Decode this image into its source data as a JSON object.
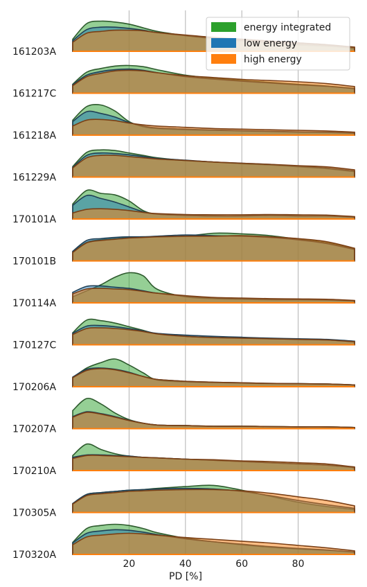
{
  "chart_data": {
    "type": "ridgeline",
    "xlabel": "PD [%]",
    "xlim": [
      0,
      100
    ],
    "xticks": [
      20,
      40,
      60,
      80
    ],
    "grid": "vertical",
    "legend_position": "top-right",
    "series": [
      {
        "name": "energy integrated",
        "color": "#2ca02c"
      },
      {
        "name": "low energy",
        "color": "#1f77b4"
      },
      {
        "name": "high energy",
        "color": "#ff7f0e"
      }
    ],
    "x": [
      0,
      5,
      10,
      15,
      20,
      25,
      30,
      40,
      50,
      60,
      70,
      80,
      90,
      100
    ],
    "rows": [
      {
        "label": "161203A",
        "energy_integrated": [
          0.4,
          0.92,
          1.0,
          0.97,
          0.9,
          0.78,
          0.66,
          0.52,
          0.42,
          0.34,
          0.27,
          0.21,
          0.17,
          0.1
        ],
        "low_energy": [
          0.35,
          0.72,
          0.8,
          0.8,
          0.76,
          0.7,
          0.62,
          0.52,
          0.44,
          0.37,
          0.3,
          0.24,
          0.19,
          0.12
        ],
        "high_energy": [
          0.3,
          0.6,
          0.66,
          0.7,
          0.7,
          0.68,
          0.62,
          0.54,
          0.46,
          0.4,
          0.34,
          0.28,
          0.22,
          0.14
        ]
      },
      {
        "label": "161217C",
        "energy_integrated": [
          0.3,
          0.7,
          0.82,
          0.9,
          0.92,
          0.88,
          0.78,
          0.6,
          0.5,
          0.42,
          0.36,
          0.3,
          0.24,
          0.16
        ],
        "low_energy": [
          0.28,
          0.6,
          0.72,
          0.78,
          0.8,
          0.76,
          0.68,
          0.55,
          0.47,
          0.4,
          0.34,
          0.28,
          0.23,
          0.15
        ],
        "high_energy": [
          0.25,
          0.55,
          0.66,
          0.74,
          0.76,
          0.74,
          0.68,
          0.58,
          0.52,
          0.46,
          0.42,
          0.38,
          0.32,
          0.22
        ]
      },
      {
        "label": "161218A",
        "energy_integrated": [
          0.5,
          0.95,
          1.0,
          0.8,
          0.45,
          0.28,
          0.22,
          0.18,
          0.16,
          0.14,
          0.12,
          0.1,
          0.09,
          0.06
        ],
        "low_energy": [
          0.45,
          0.78,
          0.72,
          0.6,
          0.42,
          0.3,
          0.24,
          0.2,
          0.17,
          0.15,
          0.13,
          0.11,
          0.1,
          0.07
        ],
        "high_energy": [
          0.3,
          0.5,
          0.52,
          0.48,
          0.4,
          0.34,
          0.3,
          0.26,
          0.22,
          0.2,
          0.18,
          0.16,
          0.14,
          0.1
        ]
      },
      {
        "label": "161229A",
        "energy_integrated": [
          0.35,
          0.82,
          0.9,
          0.88,
          0.8,
          0.72,
          0.64,
          0.55,
          0.5,
          0.44,
          0.4,
          0.34,
          0.28,
          0.18
        ],
        "low_energy": [
          0.32,
          0.72,
          0.8,
          0.78,
          0.74,
          0.68,
          0.62,
          0.56,
          0.5,
          0.46,
          0.42,
          0.36,
          0.3,
          0.2
        ],
        "high_energy": [
          0.3,
          0.64,
          0.72,
          0.72,
          0.68,
          0.64,
          0.6,
          0.55,
          0.5,
          0.46,
          0.42,
          0.38,
          0.34,
          0.24
        ]
      },
      {
        "label": "170101A",
        "energy_integrated": [
          0.5,
          0.95,
          0.85,
          0.8,
          0.6,
          0.28,
          0.16,
          0.12,
          0.1,
          0.1,
          0.12,
          0.1,
          0.1,
          0.06
        ],
        "low_energy": [
          0.45,
          0.78,
          0.68,
          0.56,
          0.4,
          0.24,
          0.16,
          0.12,
          0.1,
          0.1,
          0.12,
          0.1,
          0.1,
          0.06
        ],
        "high_energy": [
          0.2,
          0.32,
          0.34,
          0.32,
          0.28,
          0.22,
          0.18,
          0.15,
          0.14,
          0.14,
          0.15,
          0.14,
          0.13,
          0.08
        ]
      },
      {
        "label": "170101B",
        "energy_integrated": [
          0.3,
          0.62,
          0.7,
          0.74,
          0.78,
          0.8,
          0.8,
          0.82,
          0.92,
          0.9,
          0.84,
          0.72,
          0.6,
          0.4
        ],
        "low_energy": [
          0.32,
          0.68,
          0.74,
          0.78,
          0.8,
          0.8,
          0.82,
          0.86,
          0.84,
          0.82,
          0.78,
          0.7,
          0.58,
          0.38
        ],
        "high_energy": [
          0.28,
          0.6,
          0.68,
          0.72,
          0.76,
          0.78,
          0.8,
          0.82,
          0.82,
          0.84,
          0.8,
          0.74,
          0.64,
          0.42
        ]
      },
      {
        "label": "170114A",
        "energy_integrated": [
          0.2,
          0.4,
          0.6,
          0.85,
          1.0,
          0.9,
          0.45,
          0.2,
          0.14,
          0.12,
          0.1,
          0.1,
          0.09,
          0.06
        ],
        "low_energy": [
          0.35,
          0.55,
          0.56,
          0.52,
          0.48,
          0.4,
          0.32,
          0.22,
          0.16,
          0.14,
          0.12,
          0.11,
          0.1,
          0.07
        ],
        "high_energy": [
          0.3,
          0.46,
          0.48,
          0.46,
          0.44,
          0.38,
          0.32,
          0.24,
          0.18,
          0.16,
          0.14,
          0.13,
          0.12,
          0.08
        ]
      },
      {
        "label": "170127C",
        "energy_integrated": [
          0.4,
          0.82,
          0.8,
          0.72,
          0.6,
          0.48,
          0.36,
          0.28,
          0.24,
          0.22,
          0.2,
          0.18,
          0.16,
          0.1
        ],
        "low_energy": [
          0.38,
          0.62,
          0.64,
          0.6,
          0.54,
          0.46,
          0.38,
          0.32,
          0.28,
          0.25,
          0.22,
          0.2,
          0.18,
          0.12
        ],
        "high_energy": [
          0.34,
          0.54,
          0.56,
          0.54,
          0.5,
          0.44,
          0.36,
          0.28,
          0.24,
          0.22,
          0.2,
          0.18,
          0.16,
          0.1
        ]
      },
      {
        "label": "170206A",
        "energy_integrated": [
          0.3,
          0.62,
          0.8,
          0.92,
          0.72,
          0.46,
          0.22,
          0.16,
          0.14,
          0.12,
          0.1,
          0.1,
          0.09,
          0.06
        ],
        "low_energy": [
          0.32,
          0.58,
          0.62,
          0.58,
          0.48,
          0.34,
          0.24,
          0.18,
          0.15,
          0.13,
          0.11,
          0.1,
          0.09,
          0.06
        ],
        "high_energy": [
          0.3,
          0.54,
          0.6,
          0.56,
          0.46,
          0.34,
          0.24,
          0.18,
          0.15,
          0.13,
          0.11,
          0.1,
          0.09,
          0.06
        ]
      },
      {
        "label": "170207A",
        "energy_integrated": [
          0.6,
          1.0,
          0.82,
          0.52,
          0.3,
          0.18,
          0.12,
          0.1,
          0.08,
          0.08,
          0.07,
          0.06,
          0.06,
          0.04
        ],
        "low_energy": [
          0.4,
          0.56,
          0.5,
          0.4,
          0.28,
          0.18,
          0.12,
          0.1,
          0.08,
          0.08,
          0.07,
          0.06,
          0.06,
          0.04
        ],
        "high_energy": [
          0.38,
          0.54,
          0.48,
          0.38,
          0.27,
          0.18,
          0.12,
          0.1,
          0.08,
          0.08,
          0.07,
          0.06,
          0.06,
          0.04
        ]
      },
      {
        "label": "170210A",
        "energy_integrated": [
          0.5,
          0.88,
          0.7,
          0.56,
          0.48,
          0.44,
          0.42,
          0.38,
          0.34,
          0.3,
          0.26,
          0.22,
          0.18,
          0.1
        ],
        "low_energy": [
          0.44,
          0.52,
          0.52,
          0.5,
          0.48,
          0.44,
          0.42,
          0.38,
          0.34,
          0.3,
          0.26,
          0.22,
          0.18,
          0.1
        ],
        "high_energy": [
          0.4,
          0.5,
          0.5,
          0.48,
          0.46,
          0.44,
          0.42,
          0.38,
          0.36,
          0.32,
          0.3,
          0.26,
          0.22,
          0.12
        ]
      },
      {
        "label": "170305A",
        "energy_integrated": [
          0.3,
          0.6,
          0.66,
          0.7,
          0.74,
          0.76,
          0.8,
          0.86,
          0.9,
          0.74,
          0.54,
          0.34,
          0.2,
          0.1
        ],
        "low_energy": [
          0.3,
          0.6,
          0.66,
          0.7,
          0.74,
          0.76,
          0.78,
          0.8,
          0.78,
          0.7,
          0.56,
          0.4,
          0.26,
          0.14
        ],
        "high_energy": [
          0.28,
          0.56,
          0.62,
          0.66,
          0.7,
          0.72,
          0.74,
          0.76,
          0.76,
          0.72,
          0.64,
          0.52,
          0.4,
          0.22
        ]
      },
      {
        "label": "170320A",
        "energy_integrated": [
          0.4,
          0.86,
          0.96,
          1.0,
          0.96,
          0.86,
          0.72,
          0.54,
          0.42,
          0.32,
          0.24,
          0.18,
          0.14,
          0.08
        ],
        "low_energy": [
          0.38,
          0.7,
          0.78,
          0.82,
          0.8,
          0.74,
          0.66,
          0.52,
          0.42,
          0.34,
          0.26,
          0.2,
          0.15,
          0.08
        ],
        "high_energy": [
          0.32,
          0.58,
          0.64,
          0.68,
          0.7,
          0.68,
          0.64,
          0.56,
          0.5,
          0.44,
          0.38,
          0.3,
          0.22,
          0.12
        ]
      }
    ]
  }
}
